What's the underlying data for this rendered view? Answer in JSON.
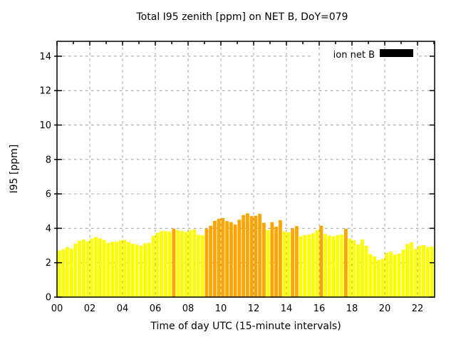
{
  "chart_data": {
    "type": "bar",
    "title": "Total I95 zenith [ppm] on NET B, DoY=079",
    "xlabel": "Time of day UTC (15-minute intervals)",
    "ylabel": "I95 [ppm]",
    "legend": {
      "label": "ion net B",
      "color": "#000000",
      "position": "top-right-inside"
    },
    "x_tick_labels": [
      "00",
      "02",
      "04",
      "06",
      "08",
      "10",
      "12",
      "14",
      "16",
      "18",
      "20",
      "22"
    ],
    "y_ticks": [
      0,
      2,
      4,
      6,
      8,
      10,
      12,
      14
    ],
    "ylim": [
      0,
      14.86
    ],
    "xlim_hours": [
      0,
      23.04
    ],
    "interval_minutes": 15,
    "grid": {
      "show": true,
      "color": "#9c9c9c",
      "dash": "3.5,4.5"
    },
    "color_map": {
      "yellow": "#ffff00",
      "orange": "#ffa500"
    },
    "times": [
      "00:00",
      "00:15",
      "00:30",
      "00:45",
      "01:00",
      "01:15",
      "01:30",
      "01:45",
      "02:00",
      "02:15",
      "02:30",
      "02:45",
      "03:00",
      "03:15",
      "03:30",
      "03:45",
      "04:00",
      "04:15",
      "04:30",
      "04:45",
      "05:00",
      "05:15",
      "05:30",
      "05:45",
      "06:00",
      "06:15",
      "06:30",
      "06:45",
      "07:00",
      "07:15",
      "07:30",
      "07:45",
      "08:00",
      "08:15",
      "08:30",
      "08:45",
      "09:00",
      "09:15",
      "09:30",
      "09:45",
      "10:00",
      "10:15",
      "10:30",
      "10:45",
      "11:00",
      "11:15",
      "11:30",
      "11:45",
      "12:00",
      "12:15",
      "12:30",
      "12:45",
      "13:00",
      "13:15",
      "13:30",
      "13:45",
      "14:00",
      "14:15",
      "14:30",
      "14:45",
      "15:00",
      "15:15",
      "15:30",
      "15:45",
      "16:00",
      "16:15",
      "16:30",
      "16:45",
      "17:00",
      "17:15",
      "17:30",
      "17:45",
      "18:00",
      "18:15",
      "18:30",
      "18:45",
      "19:00",
      "19:15",
      "19:30",
      "19:45",
      "20:00",
      "20:15",
      "20:30",
      "20:45",
      "21:00",
      "21:15",
      "21:30",
      "21:45",
      "22:00",
      "22:15",
      "22:30",
      "22:45"
    ],
    "values": [
      2.7,
      2.78,
      2.9,
      2.82,
      3.1,
      3.28,
      3.35,
      3.25,
      3.4,
      3.5,
      3.4,
      3.32,
      3.15,
      3.22,
      3.22,
      3.3,
      3.33,
      3.2,
      3.1,
      3.05,
      2.98,
      3.12,
      3.16,
      3.55,
      3.74,
      3.84,
      3.84,
      3.8,
      3.98,
      3.88,
      3.84,
      3.79,
      3.88,
      3.94,
      3.62,
      3.58,
      3.97,
      4.15,
      4.43,
      4.55,
      4.6,
      4.42,
      4.36,
      4.22,
      4.5,
      4.77,
      4.87,
      4.71,
      4.73,
      4.84,
      4.32,
      3.9,
      4.36,
      4.09,
      4.47,
      3.81,
      3.77,
      3.99,
      4.13,
      3.53,
      3.6,
      3.63,
      3.71,
      3.88,
      4.15,
      3.67,
      3.57,
      3.53,
      3.6,
      3.63,
      3.97,
      3.39,
      3.3,
      3.06,
      3.35,
      2.98,
      2.5,
      2.36,
      2.15,
      2.22,
      2.57,
      2.64,
      2.47,
      2.53,
      2.75,
      3.08,
      3.19,
      2.8,
      2.98,
      3.02,
      2.91,
      2.93
    ],
    "colors": [
      "yellow",
      "yellow",
      "yellow",
      "yellow",
      "yellow",
      "yellow",
      "yellow",
      "yellow",
      "yellow",
      "yellow",
      "yellow",
      "yellow",
      "yellow",
      "yellow",
      "yellow",
      "yellow",
      "yellow",
      "yellow",
      "yellow",
      "yellow",
      "yellow",
      "yellow",
      "yellow",
      "yellow",
      "yellow",
      "yellow",
      "yellow",
      "yellow",
      "orange",
      "yellow",
      "yellow",
      "yellow",
      "yellow",
      "yellow",
      "yellow",
      "yellow",
      "orange",
      "orange",
      "orange",
      "orange",
      "orange",
      "orange",
      "orange",
      "orange",
      "orange",
      "orange",
      "orange",
      "orange",
      "orange",
      "orange",
      "orange",
      "yellow",
      "orange",
      "orange",
      "orange",
      "yellow",
      "yellow",
      "orange",
      "orange",
      "yellow",
      "yellow",
      "yellow",
      "yellow",
      "yellow",
      "orange",
      "yellow",
      "yellow",
      "yellow",
      "yellow",
      "yellow",
      "orange",
      "yellow",
      "yellow",
      "yellow",
      "yellow",
      "yellow",
      "yellow",
      "yellow",
      "yellow",
      "yellow",
      "yellow",
      "yellow",
      "yellow",
      "yellow",
      "yellow",
      "yellow",
      "yellow",
      "yellow",
      "yellow",
      "yellow",
      "yellow",
      "yellow"
    ]
  }
}
